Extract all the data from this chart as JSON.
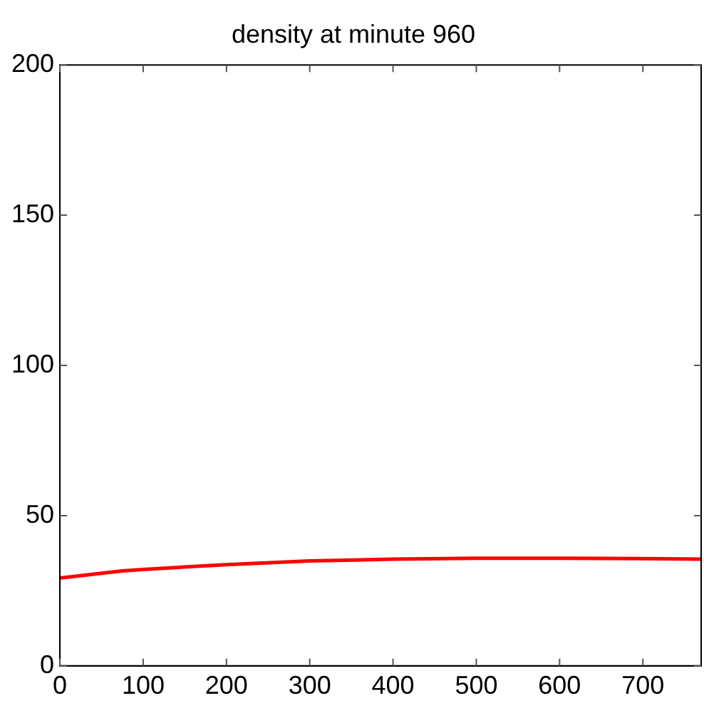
{
  "chart_data": {
    "type": "line",
    "title": "density at minute 960",
    "x": [
      0,
      75,
      100,
      200,
      300,
      400,
      500,
      600,
      700,
      770
    ],
    "series": [
      {
        "color": "#ff0000",
        "values": [
          29.2,
          31.6,
          32.1,
          33.7,
          34.9,
          35.5,
          35.8,
          35.8,
          35.7,
          35.5
        ]
      }
    ],
    "xlim": [
      0,
      770
    ],
    "xticks": [
      0,
      100,
      200,
      300,
      400,
      500,
      600,
      700
    ],
    "ylim": [
      0,
      200
    ],
    "yticks": [
      0,
      50,
      100,
      150,
      200
    ],
    "grid": false,
    "legend": false,
    "marker": "none",
    "line_style": "solid"
  }
}
